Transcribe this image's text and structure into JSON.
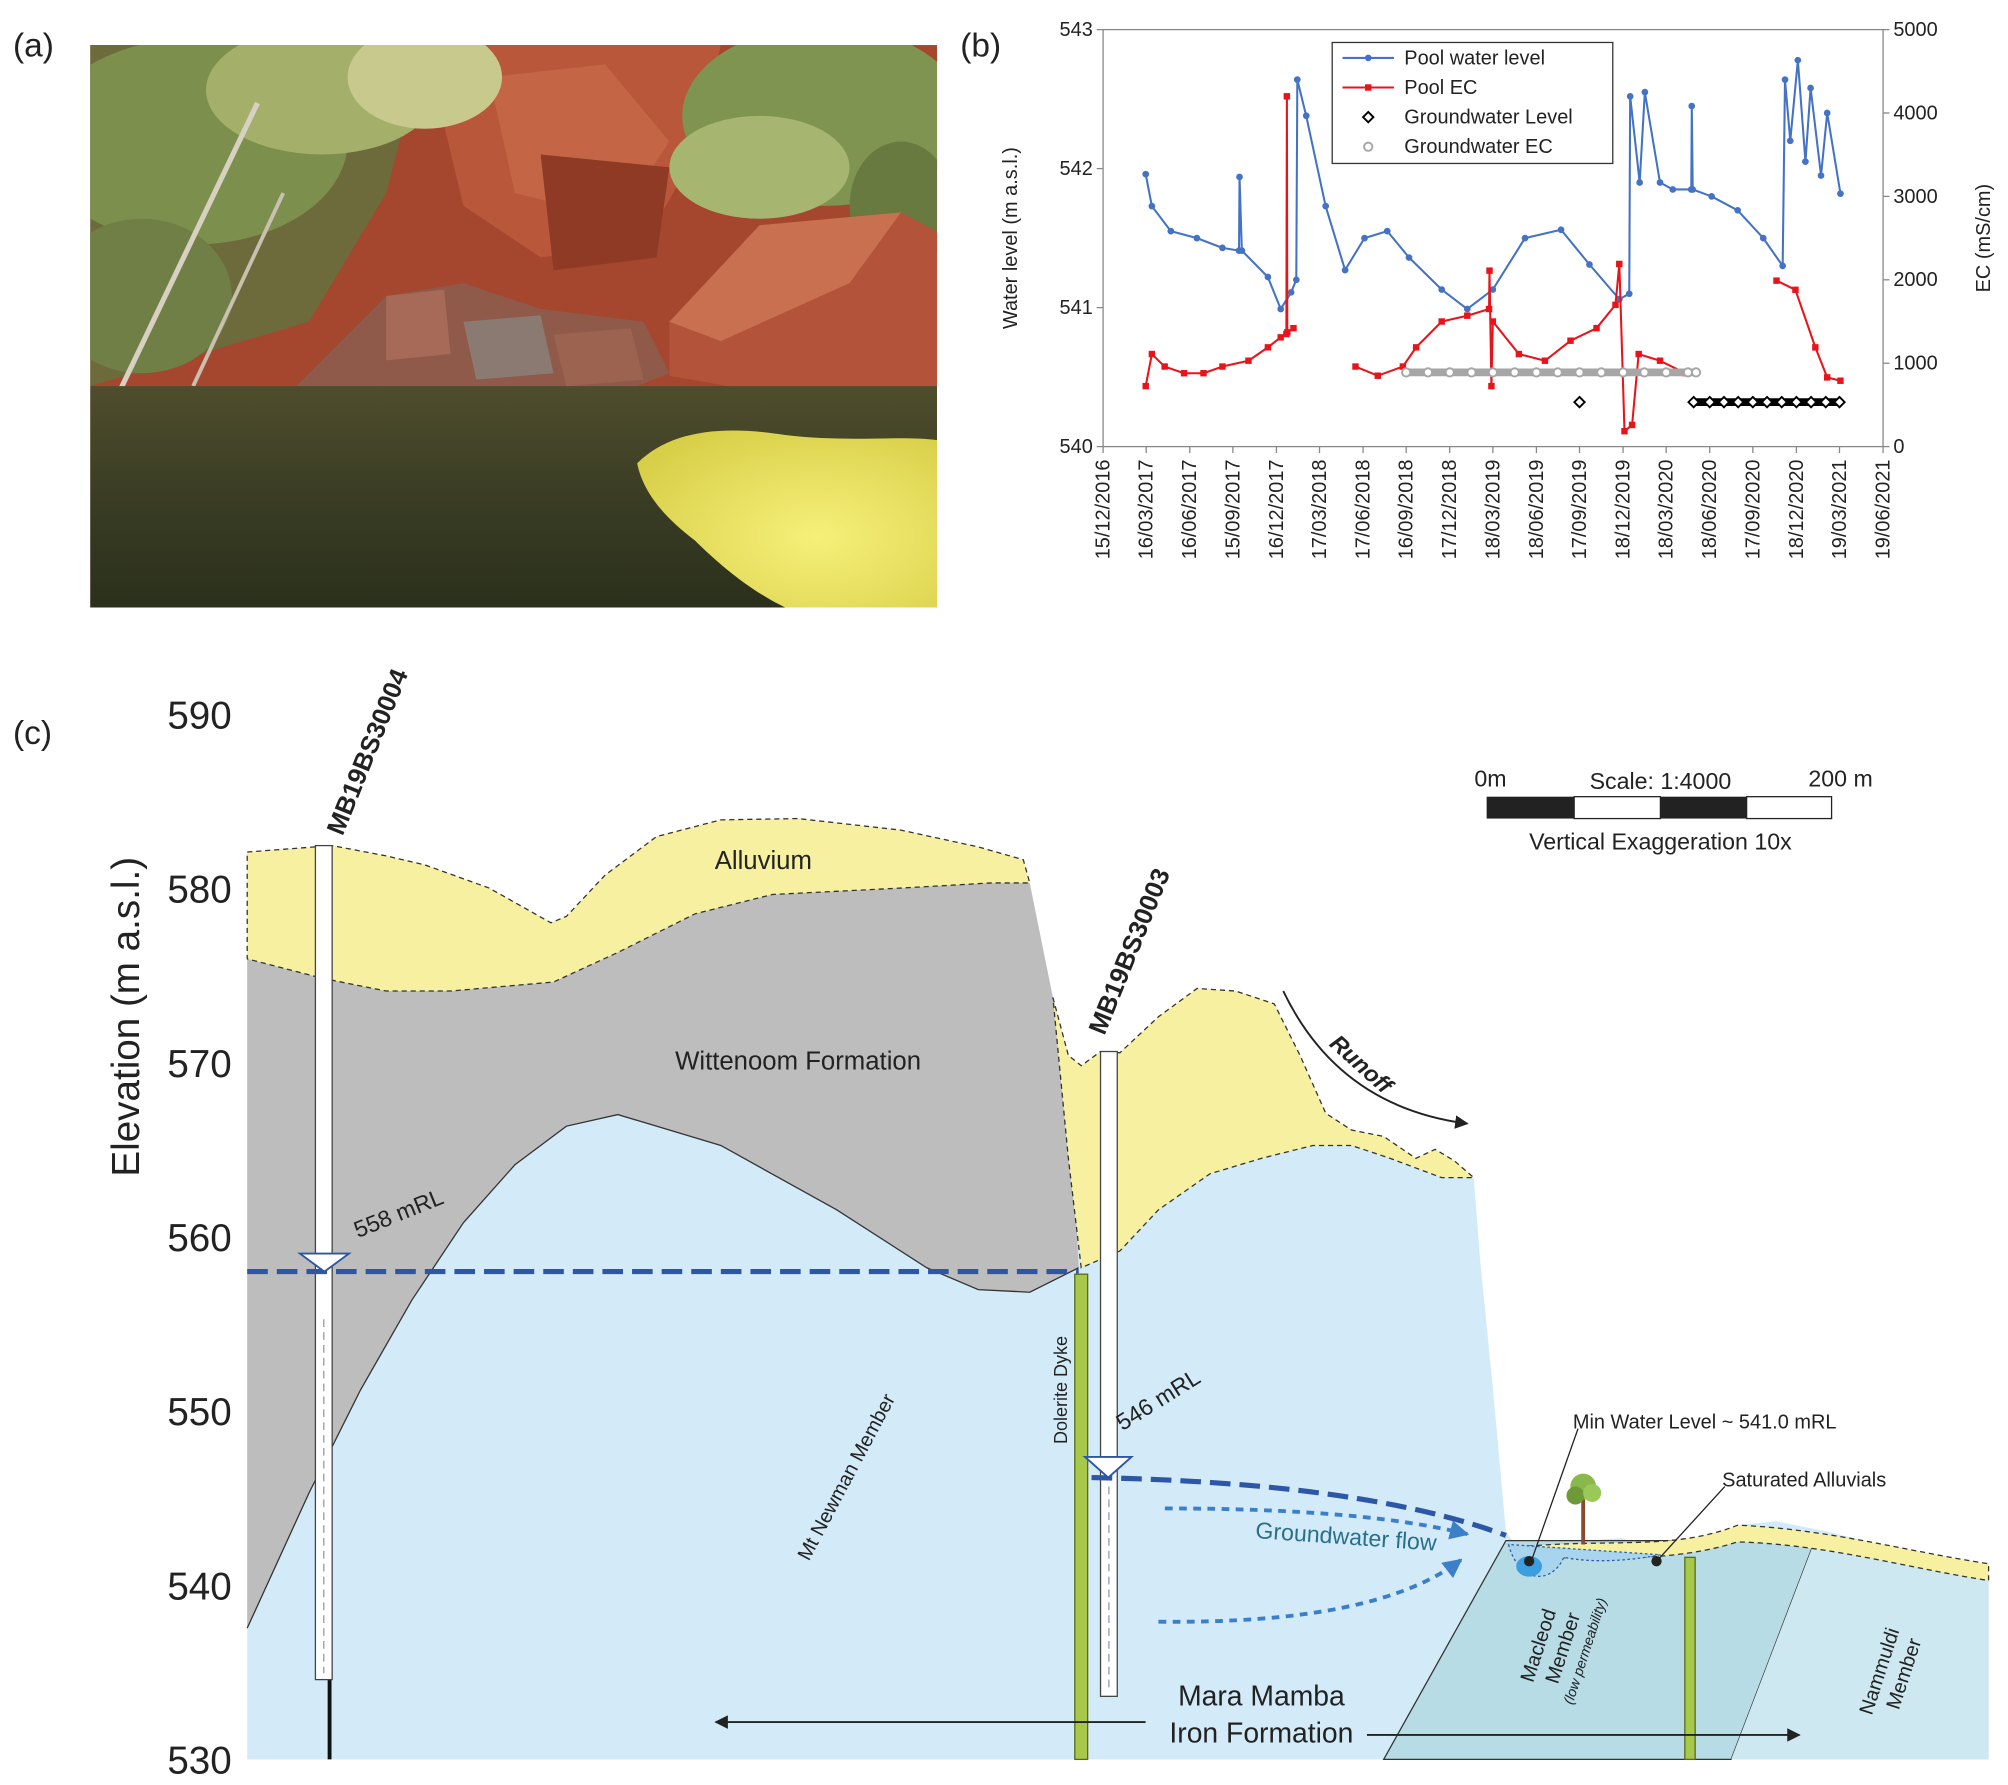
{
  "photo": {
    "panel_label": "(a)"
  },
  "chart_data": {
    "type": "line",
    "panel_label": "(b)",
    "y_label": "Water level (m a.s.l.)",
    "y2_label": "EC (mS/cm)",
    "xlim": [
      "2016-12-15",
      "2021-06-19"
    ],
    "xticks": [
      {
        "value": "2016-12-15",
        "label": "15/12/2016"
      },
      {
        "value": "2017-03-16",
        "label": "16/03/2017"
      },
      {
        "value": "2017-06-16",
        "label": "16/06/2017"
      },
      {
        "value": "2017-09-15",
        "label": "15/09/2017"
      },
      {
        "value": "2017-12-16",
        "label": "16/12/2017"
      },
      {
        "value": "2018-03-17",
        "label": "17/03/2018"
      },
      {
        "value": "2018-06-17",
        "label": "17/06/2018"
      },
      {
        "value": "2018-09-16",
        "label": "16/09/2018"
      },
      {
        "value": "2018-12-17",
        "label": "17/12/2018"
      },
      {
        "value": "2019-03-18",
        "label": "18/03/2019"
      },
      {
        "value": "2019-06-18",
        "label": "18/06/2019"
      },
      {
        "value": "2019-09-17",
        "label": "17/09/2019"
      },
      {
        "value": "2019-12-18",
        "label": "18/12/2019"
      },
      {
        "value": "2020-03-18",
        "label": "18/03/2020"
      },
      {
        "value": "2020-06-18",
        "label": "18/06/2020"
      },
      {
        "value": "2020-09-17",
        "label": "17/09/2020"
      },
      {
        "value": "2020-12-18",
        "label": "18/12/2020"
      },
      {
        "value": "2021-03-19",
        "label": "19/03/2021"
      },
      {
        "value": "2021-06-19",
        "label": "19/06/2021"
      }
    ],
    "ylim": [
      540,
      543
    ],
    "yticks": [
      540,
      541,
      542,
      543
    ],
    "y2lim": [
      0,
      5000
    ],
    "y2ticks": [
      0,
      1000,
      2000,
      3000,
      4000,
      5000
    ],
    "legend": "upper center",
    "series": [
      {
        "name": "Pool water level",
        "color": "#4472c4",
        "marker": "circle",
        "style": "line",
        "x": [
          "2017-03-15",
          "2017-03-28",
          "2017-05-07",
          "2017-07-01",
          "2017-08-24",
          "2017-09-28",
          "2017-09-29",
          "2017-10-04",
          "2017-11-28",
          "2017-12-25",
          "2018-01-16",
          "2018-01-27",
          "2018-01-29",
          "2018-02-17",
          "2018-03-30",
          "2018-05-10",
          "2018-06-20",
          "2018-08-07",
          "2018-09-22",
          "2018-11-30",
          "2019-01-23",
          "2019-03-18",
          "2019-05-25",
          "2019-08-09",
          "2019-10-08",
          "2019-12-10",
          "2019-12-31",
          "2020-01-02",
          "2020-01-22",
          "2020-02-02",
          "2020-03-05",
          "2020-04-01",
          "2020-05-10",
          "2020-05-11",
          "2020-05-13",
          "2020-06-22",
          "2020-08-16",
          "2020-10-09",
          "2020-11-19",
          "2020-11-24",
          "2020-12-05",
          "2020-12-21",
          "2021-01-06",
          "2021-01-17",
          "2021-02-08",
          "2021-02-21",
          "2021-03-21"
        ],
        "values": [
          541.96,
          541.73,
          541.55,
          541.5,
          541.43,
          541.41,
          541.94,
          541.41,
          541.22,
          540.99,
          541.11,
          541.2,
          542.64,
          542.38,
          541.73,
          541.27,
          541.5,
          541.55,
          541.36,
          541.13,
          540.99,
          541.13,
          541.5,
          541.56,
          541.31,
          541.06,
          541.1,
          542.52,
          541.9,
          542.55,
          541.9,
          541.85,
          541.85,
          542.45,
          541.85,
          541.8,
          541.7,
          541.5,
          541.3,
          542.64,
          542.2,
          542.78,
          542.05,
          542.58,
          541.95,
          542.4,
          541.82
        ]
      },
      {
        "name": "Pool EC",
        "color": "#e8141b",
        "marker": "square",
        "style": "line",
        "axis": "y2",
        "x": [
          "2017-03-15",
          "2017-03-28",
          "2017-04-24",
          "2017-06-04",
          "2017-07-15",
          "2017-08-24",
          "2017-10-18",
          "2017-11-28",
          "2017-12-25",
          "2018-01-06",
          "2018-01-07",
          "2018-01-08",
          "2018-01-21",
          "2018-03-20",
          "2018-06-01",
          "2018-07-18",
          "2018-09-09",
          "2018-10-07",
          "2018-11-30",
          "2019-01-23",
          "2019-03-10",
          "2019-03-11",
          "2019-03-15",
          "2019-03-18",
          "2019-05-12",
          "2019-07-06",
          "2019-08-29",
          "2019-10-23",
          "2019-12-02",
          "2019-12-10",
          "2019-12-21",
          "2020-01-06",
          "2020-01-20",
          "2020-03-05",
          "2020-04-28",
          "2020-08-01",
          "2020-11-06",
          "2020-12-16",
          "2021-01-27",
          "2021-02-21",
          "2021-03-21"
        ],
        "values": [
          725,
          1110,
          960,
          880,
          880,
          960,
          1030,
          1190,
          1310,
          1350,
          4200,
          1370,
          1420,
          null,
          960,
          850,
          960,
          1190,
          1500,
          1570,
          1650,
          2110,
          725,
          1500,
          1110,
          1030,
          1270,
          1420,
          1700,
          2190,
          185,
          260,
          1110,
          1030,
          880,
          null,
          1990,
          1880,
          1190,
          830,
          790
        ]
      },
      {
        "name": "Groundwater Level",
        "color": "#000000",
        "marker": "diamond",
        "style": "markers",
        "x": [
          "2019-09-17",
          "2020-01-01",
          "2020-05-15",
          "2020-06-18",
          "2020-07-18",
          "2020-08-17",
          "2020-09-17",
          "2020-10-17",
          "2020-11-17",
          "2020-12-18",
          "2021-01-18",
          "2021-02-18",
          "2021-03-19"
        ],
        "values": [
          540.32,
          null,
          540.32,
          540.32,
          540.32,
          540.32,
          540.32,
          540.32,
          540.32,
          540.32,
          540.32,
          540.32,
          540.32
        ]
      },
      {
        "name": "Groundwater EC",
        "color": "#a6a6a6",
        "marker": "circle",
        "style": "markers",
        "axis": "y2",
        "x": [
          "2018-09-16",
          "2018-11-01",
          "2018-12-17",
          "2019-02-01",
          "2019-03-18",
          "2019-05-03",
          "2019-06-18",
          "2019-08-02",
          "2019-09-17",
          "2019-11-02",
          "2019-12-18",
          "2020-02-01",
          "2020-03-18",
          "2020-05-03",
          "2020-05-20"
        ],
        "values": [
          890,
          890,
          890,
          890,
          890,
          890,
          890,
          890,
          890,
          890,
          890,
          890,
          890,
          890,
          890
        ]
      }
    ]
  },
  "cross_section": {
    "panel_label": "(c)",
    "elevation_axis": {
      "label": "Elevation (m a.s.l.)",
      "ticks": [
        590,
        580,
        570,
        560,
        550,
        540,
        530
      ]
    },
    "wells": [
      {
        "name": "MB19BS30004",
        "water_level": "558 mRL"
      },
      {
        "name": "MB19BS30003",
        "water_level": "546 mRL"
      }
    ],
    "scale_bar": {
      "start": "0m",
      "title": "Scale: 1:4000",
      "end": "200 m",
      "note": "Vertical Exaggeration 10x"
    },
    "units": {
      "alluvium": "Alluvium",
      "wittenoom": "Wittenoom Formation",
      "mt_newman": "Mt Newman Member",
      "dyke": "Dolerite Dyke",
      "mara_mamba": [
        "Mara Mamba",
        "Iron Formation"
      ],
      "macleod": [
        "Macleod",
        "Member"
      ],
      "macleod_note": "(low permeability)",
      "nammuldi": [
        "Nammuldi",
        "Member"
      ]
    },
    "annotations": {
      "runoff": "Runoff",
      "groundwater_flow": "Groundwater flow",
      "min_water_level": "Min Water Level ~ 541.0 mRL",
      "saturated_alluvials": "Saturated Alluvials"
    }
  }
}
